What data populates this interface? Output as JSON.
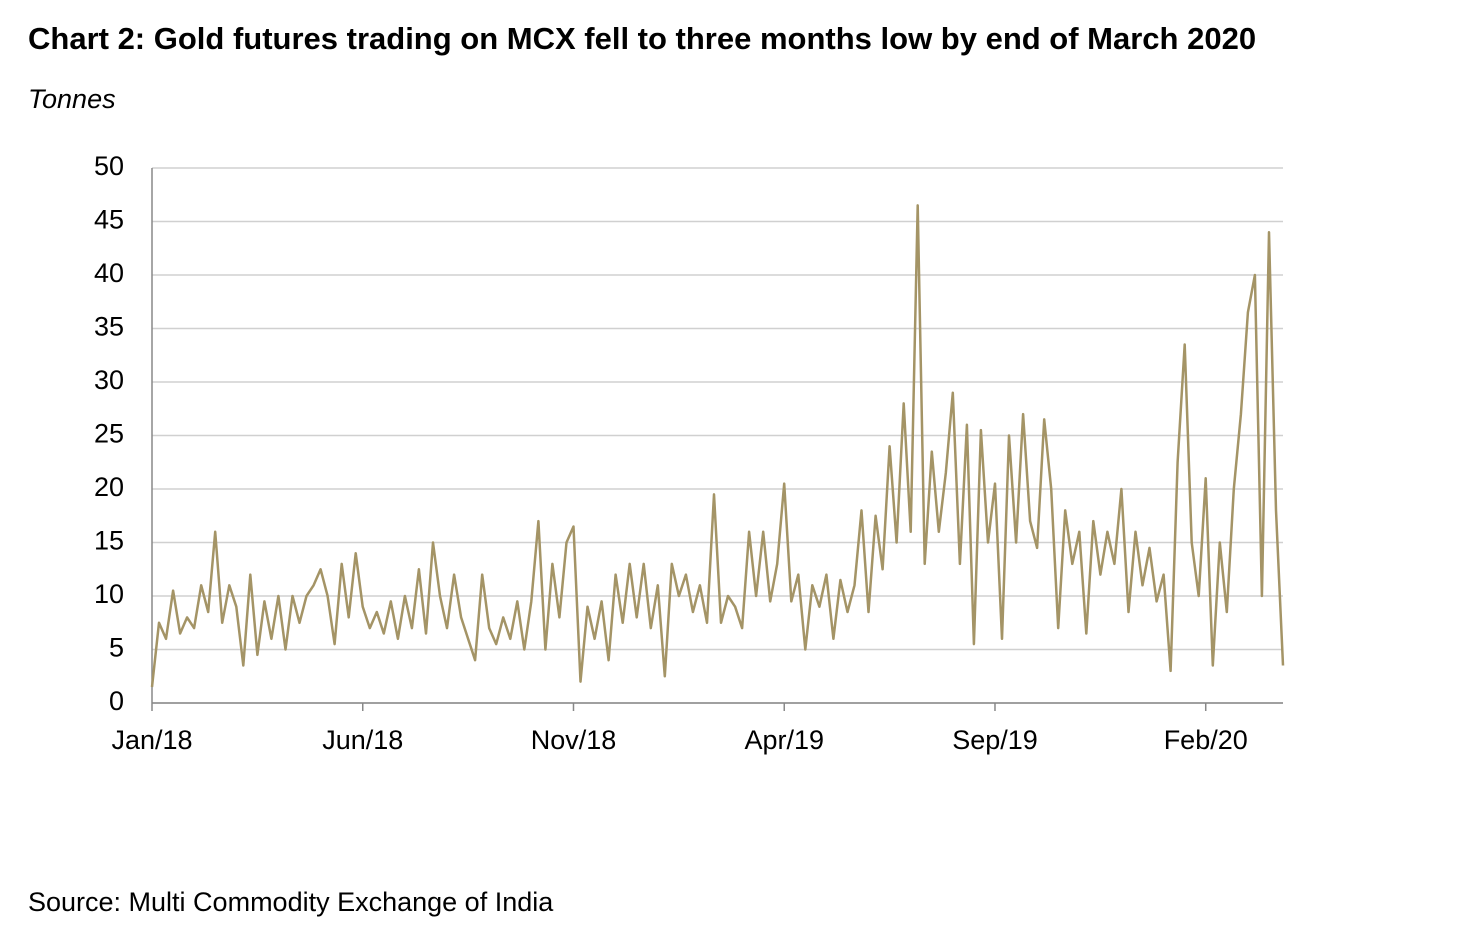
{
  "chart_data": {
    "type": "line",
    "title": "Chart 2: Gold futures trading on MCX fell to three months low by end of March 2020",
    "subtitle": "Tonnes",
    "source": "Source: Multi Commodity Exchange of India",
    "categories": [
      "Jan/18",
      null,
      null,
      null,
      null,
      null,
      null,
      null,
      null,
      null,
      null,
      null,
      null,
      null,
      null,
      null,
      null,
      null,
      null,
      null,
      null,
      null,
      null,
      null,
      null,
      null,
      null,
      null,
      null,
      null,
      "Jun/18",
      null,
      null,
      null,
      null,
      null,
      null,
      null,
      null,
      null,
      null,
      null,
      null,
      null,
      null,
      null,
      null,
      null,
      null,
      null,
      null,
      null,
      null,
      null,
      null,
      null,
      null,
      null,
      null,
      null,
      "Nov/18",
      null,
      null,
      null,
      null,
      null,
      null,
      null,
      null,
      null,
      null,
      null,
      null,
      null,
      null,
      null,
      null,
      null,
      null,
      null,
      null,
      null,
      null,
      null,
      null,
      null,
      null,
      null,
      null,
      null,
      "Apr/19",
      null,
      null,
      null,
      null,
      null,
      null,
      null,
      null,
      null,
      null,
      null,
      null,
      null,
      null,
      null,
      null,
      null,
      null,
      null,
      null,
      null,
      null,
      null,
      null,
      null,
      null,
      null,
      null,
      null,
      "Sep/19",
      null,
      null,
      null,
      null,
      null,
      null,
      null,
      null,
      null,
      null,
      null,
      null,
      null,
      null,
      null,
      null,
      null,
      null,
      null,
      null,
      null,
      null,
      null,
      null,
      null,
      null,
      null,
      null,
      null,
      "Feb/20",
      null,
      null,
      null,
      null,
      null,
      null,
      null,
      null,
      null,
      null,
      null
    ],
    "series": [
      {
        "name": "Gold futures trading",
        "color": "#a49466",
        "values": [
          1.5,
          7.5,
          6,
          10.5,
          6.5,
          8,
          7,
          11,
          8.5,
          16,
          7.5,
          11,
          9,
          3.5,
          12,
          4.5,
          9.5,
          6,
          10,
          5,
          10,
          7.5,
          10,
          11,
          12.5,
          10,
          5.5,
          13,
          8,
          14,
          9,
          7,
          8.5,
          6.5,
          9.5,
          6,
          10,
          7,
          12.5,
          6.5,
          15,
          10,
          7,
          12,
          8,
          6,
          4,
          12,
          7,
          5.5,
          8,
          6,
          9.5,
          5,
          9.5,
          17,
          5,
          13,
          8,
          15,
          16.5,
          2,
          9,
          6,
          9.5,
          4,
          12,
          7.5,
          13,
          8,
          13,
          7,
          11,
          2.5,
          13,
          10,
          12,
          8.5,
          11,
          7.5,
          19.5,
          7.5,
          10,
          9,
          7,
          16,
          10,
          16,
          9.5,
          13,
          20.5,
          9.5,
          12,
          5,
          11,
          9,
          12,
          6,
          11.5,
          8.5,
          11,
          18,
          8.5,
          17.5,
          12.5,
          24,
          15,
          28,
          16,
          46.5,
          13,
          23.5,
          16,
          21.5,
          29,
          13,
          26,
          5.5,
          25.5,
          15,
          20.5,
          6,
          25,
          15,
          27,
          17,
          14.5,
          26.5,
          20,
          7,
          18,
          13,
          16,
          6.5,
          17,
          12,
          16,
          13,
          20,
          8.5,
          16,
          11,
          14.5,
          9.5,
          12,
          3,
          22.5,
          33.5,
          15,
          10,
          21,
          3.5,
          15,
          8.5,
          20,
          27,
          36.5,
          40,
          10,
          44,
          18,
          3.5
        ]
      }
    ],
    "ylim": [
      0,
      50
    ],
    "yticks": [
      0,
      5,
      10,
      15,
      20,
      25,
      30,
      35,
      40,
      45,
      50
    ],
    "grid": true
  }
}
